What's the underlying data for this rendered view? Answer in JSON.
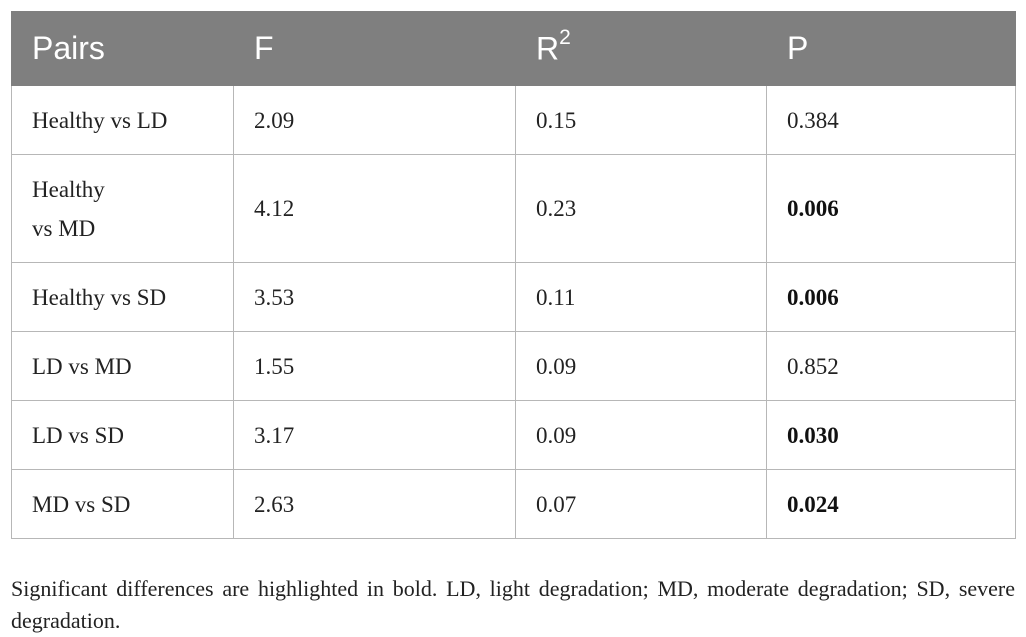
{
  "table": {
    "headers": {
      "pairs": "Pairs",
      "f": "F",
      "r_base": "R",
      "r_sup": "2",
      "p": "P"
    },
    "rows": [
      {
        "pair": "Healthy vs LD",
        "f": "2.09",
        "r2": "0.15",
        "p": "0.384",
        "p_bold": false
      },
      {
        "pair_line1": "Healthy",
        "pair_line2": "vs MD",
        "f": "4.12",
        "r2": "0.23",
        "p": "0.006",
        "p_bold": true
      },
      {
        "pair": "Healthy vs SD",
        "f": "3.53",
        "r2": "0.11",
        "p": "0.006",
        "p_bold": true
      },
      {
        "pair": "LD vs MD",
        "f": "1.55",
        "r2": "0.09",
        "p": "0.852",
        "p_bold": false
      },
      {
        "pair": "LD vs SD",
        "f": "3.17",
        "r2": "0.09",
        "p": "0.030",
        "p_bold": true
      },
      {
        "pair": "MD vs SD",
        "f": "2.63",
        "r2": "0.07",
        "p": "0.024",
        "p_bold": true
      }
    ]
  },
  "footnote": "Significant differences are highlighted in bold. LD, light degradation; MD, moderate degradation; SD, severe degradation.",
  "colors": {
    "header_bg": "#7f7f7f",
    "header_text": "#ffffff",
    "grid": "#b7b7b7"
  }
}
